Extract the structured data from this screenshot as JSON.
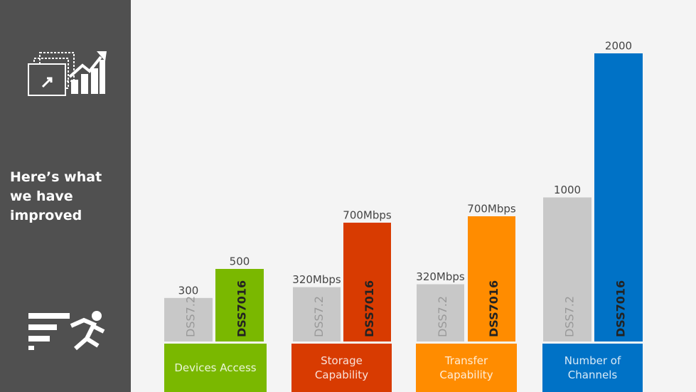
{
  "heading": "Here’s what we have improved",
  "chart_data": [
    {
      "type": "bar",
      "title": "Devices Access",
      "categories": [
        "DSS7.2",
        "DSS7016"
      ],
      "values": [
        300,
        500
      ],
      "colors": [
        "#c8c8c8",
        "#7ab800"
      ]
    },
    {
      "type": "bar",
      "title": "Storage Capability",
      "categories": [
        "DSS7.2",
        "DSS7016"
      ],
      "values": [
        320,
        700
      ],
      "value_labels": [
        "320Mbps",
        "700Mbps"
      ],
      "colors": [
        "#c8c8c8",
        "#d83b01"
      ]
    },
    {
      "type": "bar",
      "title": "Transfer Capability",
      "categories": [
        "DSS7.2",
        "DSS7016"
      ],
      "values": [
        320,
        700
      ],
      "value_labels": [
        "320Mbps",
        "700Mbps"
      ],
      "colors": [
        "#c8c8c8",
        "#ff8c00"
      ]
    },
    {
      "type": "bar",
      "title": "Number of Channels",
      "categories": [
        "DSS7.2",
        "DSS7016"
      ],
      "values": [
        1000,
        2000
      ],
      "colors": [
        "#c8c8c8",
        "#0072c6"
      ]
    }
  ]
}
